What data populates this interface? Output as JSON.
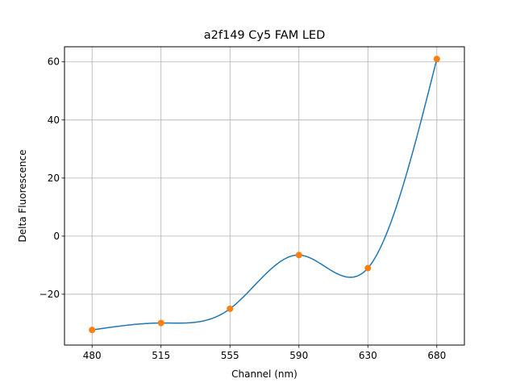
{
  "chart_data": {
    "type": "line",
    "title": "a2f149 Cy5 FAM LED",
    "xlabel": "Channel (nm)",
    "ylabel": "Delta Fluorescence",
    "categories": [
      "480",
      "515",
      "555",
      "590",
      "630",
      "680"
    ],
    "y_ticks": [
      -20,
      0,
      20,
      40,
      60
    ],
    "y_tick_labels": [
      "−20",
      "0",
      "20",
      "40",
      "60"
    ],
    "ylim": [
      -37.5,
      65.2
    ],
    "grid": true,
    "series": [
      {
        "values": [
          -32.3,
          -29.9,
          -25.0,
          -6.5,
          -11.0,
          61.0
        ],
        "line_color": "#1f77b4",
        "marker_color": "#ff7f0e",
        "style": "smooth-curve-with-markers"
      }
    ]
  }
}
